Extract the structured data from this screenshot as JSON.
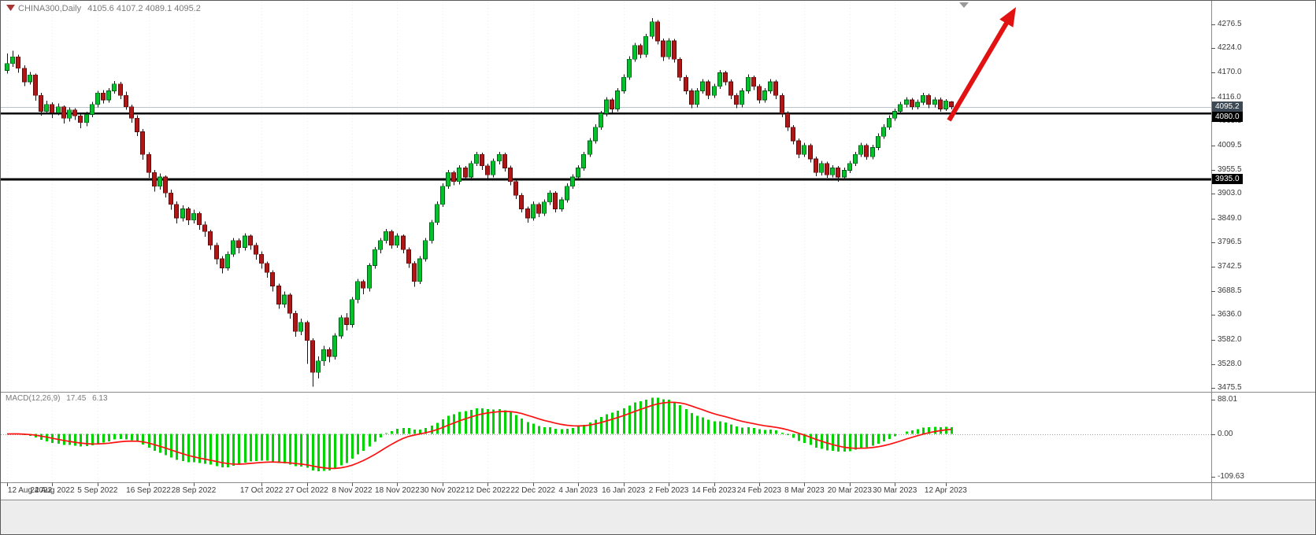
{
  "header": {
    "symbol_period": "CHINA300,Daily",
    "ohlc_text": "4105.6 4107.2 4089.1 4095.2"
  },
  "macd_panel": {
    "label": "MACD(12,26,9)",
    "value_main": "17.45",
    "value_signal": "6.13",
    "scale": {
      "max": "88.01",
      "zero": "0.00",
      "min": "-109.63"
    }
  },
  "price_tags": {
    "bid": "4095.2",
    "upper": "4080.0",
    "lower": "3935.0"
  },
  "chart_data": {
    "type": "candlestick",
    "title": "CHINA300,Daily",
    "symbol": "CHINA300",
    "timeframe": "Daily",
    "current_ohlc": {
      "open": 4105.6,
      "high": 4107.2,
      "low": 4089.1,
      "close": 4095.2
    },
    "bid": 4095.2,
    "horizontal_lines": [
      4080.0,
      3935.0
    ],
    "price_scale_labels": [
      "4276.5",
      "4224.0",
      "4170.0",
      "4116.0",
      "4063.5",
      "4009.5",
      "3955.5",
      "3903.0",
      "3849.0",
      "3796.5",
      "3742.5",
      "3688.5",
      "3636.0",
      "3582.0",
      "3528.0",
      "3475.5"
    ],
    "annotation_arrow": {
      "direction": "up",
      "color": "#e31212",
      "from": [
        1204,
        152
      ],
      "to": [
        1289,
        8
      ]
    },
    "grid": "vertical-dotted",
    "legend_position": "none",
    "date_ticks": [
      {
        "label": "12 Aug 2022",
        "bar": 0
      },
      {
        "label": "24 Aug 2022",
        "bar": 8
      },
      {
        "label": "5 Sep 2022",
        "bar": 16
      },
      {
        "label": "16 Sep 2022",
        "bar": 25
      },
      {
        "label": "28 Sep 2022",
        "bar": 33
      },
      {
        "label": "17 Oct 2022",
        "bar": 45
      },
      {
        "label": "27 Oct 2022",
        "bar": 53
      },
      {
        "label": "8 Nov 2022",
        "bar": 61
      },
      {
        "label": "18 Nov 2022",
        "bar": 69
      },
      {
        "label": "30 Nov 2022",
        "bar": 77
      },
      {
        "label": "12 Dec 2022",
        "bar": 85
      },
      {
        "label": "22 Dec 2022",
        "bar": 93
      },
      {
        "label": "4 Jan 2023",
        "bar": 101
      },
      {
        "label": "16 Jan 2023",
        "bar": 109
      },
      {
        "label": "2 Feb 2023",
        "bar": 117
      },
      {
        "label": "14 Feb 2023",
        "bar": 125
      },
      {
        "label": "24 Feb 2023",
        "bar": 133
      },
      {
        "label": "8 Mar 2023",
        "bar": 141
      },
      {
        "label": "20 Mar 2023",
        "bar": 149
      },
      {
        "label": "30 Mar 2023",
        "bar": 157
      },
      {
        "label": "12 Apr 2023",
        "bar": 166
      }
    ],
    "colors": {
      "up": "#00c22a",
      "down": "#b01616",
      "up_border": "#006018",
      "down_border": "#5e0a0a",
      "wick": "#141414"
    },
    "macd": {
      "params": "12,26,9",
      "last_main": 17.45,
      "last_signal": 6.13,
      "scale_max": 88.01,
      "scale_min": -109.63,
      "histogram_color": "#00d400",
      "signal_color": "#ff1010",
      "note": "histogram and signal computed from candles with EMA 12/26/9"
    },
    "candles": [
      [
        4175,
        4212,
        4168,
        4190
      ],
      [
        4190,
        4218,
        4183,
        4205
      ],
      [
        4205,
        4210,
        4170,
        4180
      ],
      [
        4180,
        4186,
        4140,
        4150
      ],
      [
        4150,
        4172,
        4144,
        4165
      ],
      [
        4165,
        4168,
        4108,
        4120
      ],
      [
        4120,
        4126,
        4075,
        4085
      ],
      [
        4085,
        4108,
        4078,
        4100
      ],
      [
        4100,
        4105,
        4070,
        4082
      ],
      [
        4082,
        4102,
        4076,
        4095
      ],
      [
        4095,
        4098,
        4058,
        4070
      ],
      [
        4070,
        4094,
        4062,
        4088
      ],
      [
        4088,
        4092,
        4066,
        4075
      ],
      [
        4075,
        4080,
        4048,
        4060
      ],
      [
        4060,
        4084,
        4052,
        4078
      ],
      [
        4078,
        4106,
        4072,
        4100
      ],
      [
        4100,
        4130,
        4094,
        4125
      ],
      [
        4125,
        4132,
        4102,
        4110
      ],
      [
        4110,
        4136,
        4104,
        4130
      ],
      [
        4130,
        4152,
        4124,
        4145
      ],
      [
        4145,
        4150,
        4112,
        4120
      ],
      [
        4120,
        4128,
        4088,
        4095
      ],
      [
        4095,
        4100,
        4060,
        4070
      ],
      [
        4070,
        4076,
        4030,
        4040
      ],
      [
        4040,
        4046,
        3978,
        3990
      ],
      [
        3990,
        3995,
        3938,
        3950
      ],
      [
        3950,
        3956,
        3908,
        3920
      ],
      [
        3920,
        3948,
        3912,
        3940
      ],
      [
        3940,
        3944,
        3895,
        3905
      ],
      [
        3905,
        3912,
        3868,
        3880
      ],
      [
        3880,
        3886,
        3838,
        3850
      ],
      [
        3850,
        3878,
        3842,
        3870
      ],
      [
        3870,
        3874,
        3834,
        3845
      ],
      [
        3845,
        3868,
        3838,
        3860
      ],
      [
        3860,
        3864,
        3824,
        3835
      ],
      [
        3835,
        3842,
        3808,
        3820
      ],
      [
        3820,
        3824,
        3780,
        3790
      ],
      [
        3790,
        3795,
        3748,
        3760
      ],
      [
        3760,
        3766,
        3728,
        3740
      ],
      [
        3740,
        3776,
        3734,
        3770
      ],
      [
        3770,
        3806,
        3764,
        3800
      ],
      [
        3800,
        3805,
        3772,
        3785
      ],
      [
        3785,
        3816,
        3778,
        3810
      ],
      [
        3810,
        3814,
        3780,
        3790
      ],
      [
        3790,
        3795,
        3758,
        3770
      ],
      [
        3770,
        3776,
        3738,
        3750
      ],
      [
        3750,
        3754,
        3718,
        3730
      ],
      [
        3730,
        3735,
        3688,
        3700
      ],
      [
        3700,
        3705,
        3650,
        3660
      ],
      [
        3660,
        3688,
        3652,
        3680
      ],
      [
        3680,
        3684,
        3628,
        3640
      ],
      [
        3640,
        3645,
        3588,
        3600
      ],
      [
        3600,
        3628,
        3592,
        3620
      ],
      [
        3620,
        3624,
        3528,
        3580
      ],
      [
        3580,
        3585,
        3478,
        3510
      ],
      [
        3510,
        3545,
        3496,
        3535
      ],
      [
        3535,
        3568,
        3524,
        3560
      ],
      [
        3560,
        3565,
        3532,
        3545
      ],
      [
        3545,
        3596,
        3538,
        3590
      ],
      [
        3590,
        3636,
        3584,
        3630
      ],
      [
        3630,
        3640,
        3602,
        3615
      ],
      [
        3615,
        3676,
        3608,
        3670
      ],
      [
        3670,
        3716,
        3662,
        3710
      ],
      [
        3710,
        3714,
        3682,
        3695
      ],
      [
        3695,
        3750,
        3688,
        3745
      ],
      [
        3745,
        3786,
        3738,
        3780
      ],
      [
        3780,
        3806,
        3772,
        3800
      ],
      [
        3800,
        3826,
        3794,
        3820
      ],
      [
        3820,
        3824,
        3782,
        3790
      ],
      [
        3790,
        3816,
        3784,
        3810
      ],
      [
        3810,
        3814,
        3772,
        3780
      ],
      [
        3780,
        3785,
        3740,
        3750
      ],
      [
        3750,
        3755,
        3698,
        3710
      ],
      [
        3710,
        3766,
        3704,
        3760
      ],
      [
        3760,
        3806,
        3754,
        3800
      ],
      [
        3800,
        3846,
        3794,
        3840
      ],
      [
        3840,
        3886,
        3834,
        3880
      ],
      [
        3880,
        3926,
        3874,
        3920
      ],
      [
        3920,
        3956,
        3914,
        3950
      ],
      [
        3950,
        3954,
        3922,
        3930
      ],
      [
        3930,
        3966,
        3924,
        3960
      ],
      [
        3960,
        3964,
        3932,
        3940
      ],
      [
        3940,
        3976,
        3934,
        3970
      ],
      [
        3970,
        3996,
        3964,
        3990
      ],
      [
        3990,
        3994,
        3956,
        3965
      ],
      [
        3965,
        3970,
        3936,
        3945
      ],
      [
        3945,
        3981,
        3939,
        3975
      ],
      [
        3975,
        3996,
        3968,
        3990
      ],
      [
        3990,
        3994,
        3952,
        3960
      ],
      [
        3960,
        3965,
        3922,
        3930
      ],
      [
        3930,
        3934,
        3892,
        3900
      ],
      [
        3900,
        3905,
        3862,
        3870
      ],
      [
        3870,
        3875,
        3840,
        3850
      ],
      [
        3850,
        3886,
        3844,
        3880
      ],
      [
        3880,
        3884,
        3852,
        3860
      ],
      [
        3860,
        3891,
        3854,
        3885
      ],
      [
        3885,
        3911,
        3879,
        3905
      ],
      [
        3905,
        3909,
        3862,
        3870
      ],
      [
        3870,
        3896,
        3864,
        3890
      ],
      [
        3890,
        3926,
        3884,
        3920
      ],
      [
        3920,
        3946,
        3914,
        3940
      ],
      [
        3940,
        3966,
        3934,
        3960
      ],
      [
        3960,
        3996,
        3954,
        3990
      ],
      [
        3990,
        4026,
        3984,
        4020
      ],
      [
        4020,
        4056,
        4014,
        4050
      ],
      [
        4050,
        4086,
        4044,
        4080
      ],
      [
        4080,
        4116,
        4074,
        4110
      ],
      [
        4110,
        4114,
        4082,
        4090
      ],
      [
        4090,
        4136,
        4084,
        4130
      ],
      [
        4130,
        4166,
        4124,
        4160
      ],
      [
        4160,
        4206,
        4154,
        4200
      ],
      [
        4200,
        4236,
        4194,
        4230
      ],
      [
        4230,
        4234,
        4202,
        4210
      ],
      [
        4210,
        4256,
        4204,
        4250
      ],
      [
        4250,
        4290,
        4244,
        4282
      ],
      [
        4282,
        4286,
        4232,
        4240
      ],
      [
        4240,
        4245,
        4196,
        4205
      ],
      [
        4205,
        4246,
        4199,
        4240
      ],
      [
        4240,
        4244,
        4192,
        4200
      ],
      [
        4200,
        4204,
        4152,
        4160
      ],
      [
        4160,
        4165,
        4122,
        4130
      ],
      [
        4130,
        4135,
        4092,
        4100
      ],
      [
        4100,
        4136,
        4094,
        4130
      ],
      [
        4130,
        4156,
        4124,
        4150
      ],
      [
        4150,
        4154,
        4112,
        4120
      ],
      [
        4120,
        4146,
        4114,
        4140
      ],
      [
        4140,
        4176,
        4134,
        4170
      ],
      [
        4170,
        4174,
        4142,
        4150
      ],
      [
        4150,
        4155,
        4112,
        4120
      ],
      [
        4120,
        4125,
        4092,
        4100
      ],
      [
        4100,
        4136,
        4094,
        4130
      ],
      [
        4130,
        4166,
        4124,
        4160
      ],
      [
        4160,
        4164,
        4132,
        4140
      ],
      [
        4140,
        4145,
        4102,
        4110
      ],
      [
        4110,
        4136,
        4104,
        4130
      ],
      [
        4130,
        4156,
        4124,
        4150
      ],
      [
        4150,
        4154,
        4112,
        4120
      ],
      [
        4120,
        4125,
        4072,
        4080
      ],
      [
        4080,
        4085,
        4042,
        4050
      ],
      [
        4050,
        4055,
        4012,
        4020
      ],
      [
        4020,
        4025,
        3982,
        3990
      ],
      [
        3990,
        4016,
        3984,
        4010
      ],
      [
        4010,
        4014,
        3972,
        3980
      ],
      [
        3980,
        3985,
        3942,
        3950
      ],
      [
        3950,
        3976,
        3944,
        3970
      ],
      [
        3970,
        3974,
        3938,
        3945
      ],
      [
        3945,
        3966,
        3939,
        3960
      ],
      [
        3960,
        3964,
        3930,
        3940
      ],
      [
        3940,
        3961,
        3934,
        3955
      ],
      [
        3955,
        3976,
        3949,
        3970
      ],
      [
        3970,
        3996,
        3964,
        3990
      ],
      [
        3990,
        4016,
        3984,
        4010
      ],
      [
        4010,
        4014,
        3978,
        3985
      ],
      [
        3985,
        4011,
        3979,
        4005
      ],
      [
        4005,
        4036,
        3999,
        4030
      ],
      [
        4030,
        4056,
        4024,
        4050
      ],
      [
        4050,
        4076,
        4044,
        4070
      ],
      [
        4070,
        4091,
        4064,
        4085
      ],
      [
        4085,
        4106,
        4079,
        4100
      ],
      [
        4100,
        4116,
        4094,
        4110
      ],
      [
        4110,
        4114,
        4088,
        4095
      ],
      [
        4095,
        4111,
        4089,
        4105
      ],
      [
        4105,
        4126,
        4099,
        4120
      ],
      [
        4120,
        4124,
        4092,
        4100
      ],
      [
        4100,
        4116,
        4094,
        4110
      ],
      [
        4110,
        4115,
        4084,
        4090
      ],
      [
        4090,
        4112,
        4086,
        4108
      ],
      [
        4105.6,
        4107.2,
        4089.1,
        4095.2
      ]
    ]
  }
}
